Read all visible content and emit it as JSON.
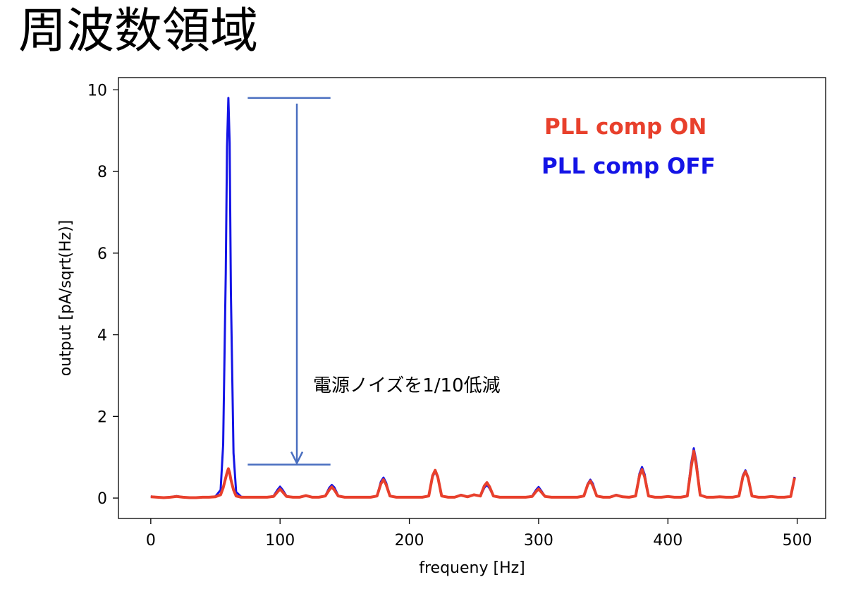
{
  "slide": {
    "title": "周波数領域"
  },
  "chart_data": {
    "type": "line",
    "xlabel": "frequeny [Hz]",
    "ylabel": "output [pA/sqrt(Hz)]",
    "xlim": [
      -25,
      522
    ],
    "ylim": [
      -0.5,
      10.3
    ],
    "xticks": [
      0,
      100,
      200,
      300,
      400,
      500
    ],
    "yticks": [
      0,
      2,
      4,
      6,
      8,
      10
    ],
    "grid": false,
    "legend": {
      "placement": "top-right"
    },
    "annotations": {
      "reduction_text": "電源ノイズを1/10低減",
      "bracket_x_range": [
        75,
        139
      ],
      "bracket_y_top": 9.8,
      "bracket_y_bottom": 0.82,
      "arrow_x": 113
    },
    "series": [
      {
        "name": "PLL comp OFF",
        "color": "#1414e6",
        "x": [
          0,
          5,
          10,
          15,
          20,
          25,
          30,
          35,
          40,
          45,
          50,
          54,
          56,
          58,
          59,
          60,
          61,
          62,
          64,
          66,
          70,
          75,
          80,
          85,
          90,
          95,
          98,
          100,
          102,
          105,
          110,
          115,
          120,
          125,
          130,
          135,
          138,
          140,
          142,
          145,
          150,
          155,
          160,
          165,
          170,
          175,
          178,
          180,
          182,
          185,
          190,
          195,
          200,
          205,
          210,
          215,
          218,
          220,
          222,
          225,
          230,
          235,
          240,
          245,
          250,
          255,
          258,
          260,
          262,
          265,
          270,
          275,
          280,
          285,
          290,
          295,
          298,
          300,
          302,
          305,
          310,
          315,
          320,
          325,
          330,
          335,
          338,
          340,
          342,
          345,
          350,
          355,
          360,
          365,
          370,
          375,
          378,
          380,
          382,
          385,
          390,
          395,
          400,
          405,
          410,
          415,
          418,
          420,
          422,
          425,
          430,
          435,
          440,
          445,
          450,
          455,
          458,
          460,
          462,
          465,
          470,
          475,
          480,
          485,
          490,
          495,
          498
        ],
        "values": [
          0.04,
          0.02,
          0.01,
          0.02,
          0.05,
          0.02,
          0.01,
          0.01,
          0.02,
          0.02,
          0.04,
          0.2,
          1.3,
          5.5,
          8.6,
          9.8,
          8.7,
          5.0,
          1.1,
          0.15,
          0.03,
          0.02,
          0.02,
          0.02,
          0.02,
          0.05,
          0.2,
          0.28,
          0.2,
          0.05,
          0.02,
          0.02,
          0.05,
          0.02,
          0.02,
          0.05,
          0.25,
          0.32,
          0.26,
          0.06,
          0.02,
          0.02,
          0.02,
          0.02,
          0.02,
          0.05,
          0.4,
          0.5,
          0.38,
          0.05,
          0.02,
          0.02,
          0.02,
          0.02,
          0.02,
          0.05,
          0.52,
          0.65,
          0.5,
          0.05,
          0.02,
          0.02,
          0.08,
          0.03,
          0.08,
          0.05,
          0.25,
          0.33,
          0.24,
          0.05,
          0.02,
          0.02,
          0.02,
          0.02,
          0.02,
          0.05,
          0.2,
          0.27,
          0.18,
          0.04,
          0.02,
          0.02,
          0.02,
          0.02,
          0.02,
          0.05,
          0.35,
          0.45,
          0.35,
          0.05,
          0.02,
          0.02,
          0.08,
          0.03,
          0.02,
          0.05,
          0.6,
          0.76,
          0.58,
          0.05,
          0.02,
          0.02,
          0.04,
          0.02,
          0.02,
          0.06,
          0.85,
          1.22,
          0.9,
          0.08,
          0.02,
          0.02,
          0.03,
          0.02,
          0.02,
          0.05,
          0.55,
          0.68,
          0.52,
          0.05,
          0.02,
          0.02,
          0.04,
          0.02,
          0.02,
          0.04,
          0.52
        ]
      },
      {
        "name": "PLL comp ON",
        "color": "#e8402c",
        "x": [
          0,
          5,
          10,
          15,
          20,
          25,
          30,
          35,
          40,
          45,
          50,
          54,
          56,
          58,
          59,
          60,
          61,
          62,
          64,
          66,
          70,
          75,
          80,
          85,
          90,
          95,
          98,
          100,
          102,
          105,
          110,
          115,
          120,
          125,
          130,
          135,
          138,
          140,
          142,
          145,
          150,
          155,
          160,
          165,
          170,
          175,
          178,
          180,
          182,
          185,
          190,
          195,
          200,
          205,
          210,
          215,
          218,
          220,
          222,
          225,
          230,
          235,
          240,
          245,
          250,
          255,
          258,
          260,
          262,
          265,
          270,
          275,
          280,
          285,
          290,
          295,
          298,
          300,
          302,
          305,
          310,
          315,
          320,
          325,
          330,
          335,
          338,
          340,
          342,
          345,
          350,
          355,
          360,
          365,
          370,
          375,
          378,
          380,
          382,
          385,
          390,
          395,
          400,
          405,
          410,
          415,
          418,
          420,
          422,
          425,
          430,
          435,
          440,
          445,
          450,
          455,
          458,
          460,
          462,
          465,
          470,
          475,
          480,
          485,
          490,
          495,
          498
        ],
        "values": [
          0.03,
          0.02,
          0.01,
          0.02,
          0.04,
          0.02,
          0.01,
          0.01,
          0.02,
          0.02,
          0.03,
          0.08,
          0.25,
          0.5,
          0.62,
          0.72,
          0.62,
          0.45,
          0.2,
          0.05,
          0.02,
          0.02,
          0.02,
          0.02,
          0.02,
          0.04,
          0.15,
          0.22,
          0.15,
          0.04,
          0.02,
          0.02,
          0.06,
          0.02,
          0.02,
          0.05,
          0.2,
          0.27,
          0.2,
          0.05,
          0.02,
          0.02,
          0.02,
          0.02,
          0.02,
          0.05,
          0.35,
          0.45,
          0.33,
          0.05,
          0.02,
          0.02,
          0.02,
          0.02,
          0.02,
          0.05,
          0.55,
          0.68,
          0.52,
          0.05,
          0.02,
          0.02,
          0.07,
          0.03,
          0.08,
          0.05,
          0.3,
          0.38,
          0.28,
          0.05,
          0.02,
          0.02,
          0.02,
          0.02,
          0.02,
          0.04,
          0.16,
          0.22,
          0.15,
          0.04,
          0.02,
          0.02,
          0.02,
          0.02,
          0.02,
          0.05,
          0.33,
          0.42,
          0.3,
          0.05,
          0.02,
          0.02,
          0.07,
          0.03,
          0.02,
          0.05,
          0.55,
          0.7,
          0.52,
          0.05,
          0.02,
          0.02,
          0.04,
          0.02,
          0.02,
          0.05,
          0.75,
          1.15,
          0.8,
          0.07,
          0.02,
          0.02,
          0.03,
          0.02,
          0.02,
          0.05,
          0.52,
          0.65,
          0.5,
          0.05,
          0.02,
          0.02,
          0.04,
          0.02,
          0.02,
          0.04,
          0.5
        ]
      }
    ]
  }
}
